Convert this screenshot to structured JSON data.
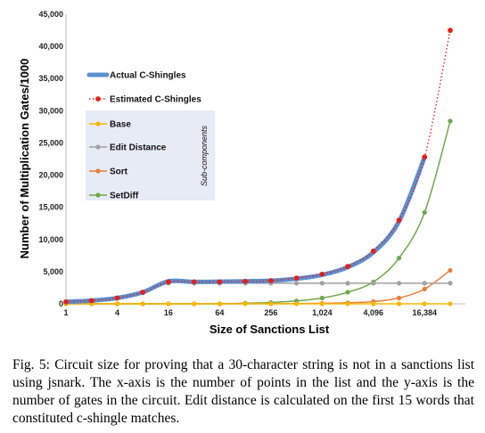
{
  "chart_data": {
    "type": "line",
    "xlabel": "Size of Sanctions List",
    "ylabel": "Number of Multiplication Gates/1000",
    "x_scale": "log2",
    "x": [
      1,
      2,
      4,
      8,
      16,
      32,
      64,
      128,
      256,
      512,
      1024,
      2048,
      4096,
      8192,
      16384,
      32768
    ],
    "x_ticks": [
      1,
      4,
      16,
      64,
      256,
      1024,
      4096,
      16384
    ],
    "x_tick_labels": [
      "1",
      "4",
      "16",
      "64",
      "256",
      "1,024",
      "4,096",
      "16,384"
    ],
    "ylim": [
      0,
      45000
    ],
    "y_ticks": [
      0,
      5000,
      10000,
      15000,
      20000,
      25000,
      30000,
      35000,
      40000,
      45000
    ],
    "y_tick_labels": [
      "0",
      "5,000",
      "10,000",
      "15,000",
      "20,000",
      "25,000",
      "30,000",
      "35,000",
      "40,000",
      "45,000"
    ],
    "grid": false,
    "legend_position": "left",
    "series": [
      {
        "name": "Actual C-Shingles",
        "color": "#5b8fcf",
        "style": "thick",
        "values": [
          300,
          500,
          900,
          1800,
          3500,
          3400,
          3450,
          3500,
          3600,
          3900,
          4500,
          5700,
          8000,
          12800,
          22800,
          null
        ]
      },
      {
        "name": "Estimated C-Shingles",
        "color": "#e3201b",
        "style": "dotted-markers",
        "values": [
          300,
          500,
          900,
          1800,
          3400,
          3400,
          3400,
          3500,
          3600,
          4000,
          4600,
          5800,
          8200,
          13000,
          22800,
          42500
        ]
      },
      {
        "name": "Base",
        "color": "#f5b800",
        "style": "markers",
        "values": [
          0,
          0,
          0,
          0,
          0,
          0,
          0,
          0,
          0,
          0,
          0,
          0,
          0,
          0,
          0,
          0
        ]
      },
      {
        "name": "Edit Distance",
        "color": "#a0a0a0",
        "style": "markers",
        "values": [
          300,
          500,
          900,
          1700,
          3200,
          3200,
          3200,
          3200,
          3200,
          3200,
          3200,
          3200,
          3200,
          3200,
          3200,
          3200
        ]
      },
      {
        "name": "Sort",
        "color": "#e87d3e",
        "style": "markers",
        "values": [
          0,
          0,
          0,
          0,
          0,
          0,
          0,
          10,
          20,
          40,
          80,
          160,
          350,
          900,
          2300,
          5200
        ]
      },
      {
        "name": "SetDiff",
        "color": "#6fa84a",
        "style": "markers",
        "values": [
          0,
          0,
          0,
          0,
          0,
          0,
          0,
          100,
          200,
          450,
          900,
          1800,
          3400,
          7100,
          14200,
          28400
        ]
      }
    ],
    "annotation": "Sub-components"
  },
  "caption": {
    "label": "Fig. 5:",
    "text": "Circuit size for proving that a 30-character string is not in a sanctions list using jsnark. The x-axis is the number of points in the list and the y-axis is the number of gates in the circuit. Edit distance is calculated on the first 15 words that constituted c-shingle matches."
  }
}
